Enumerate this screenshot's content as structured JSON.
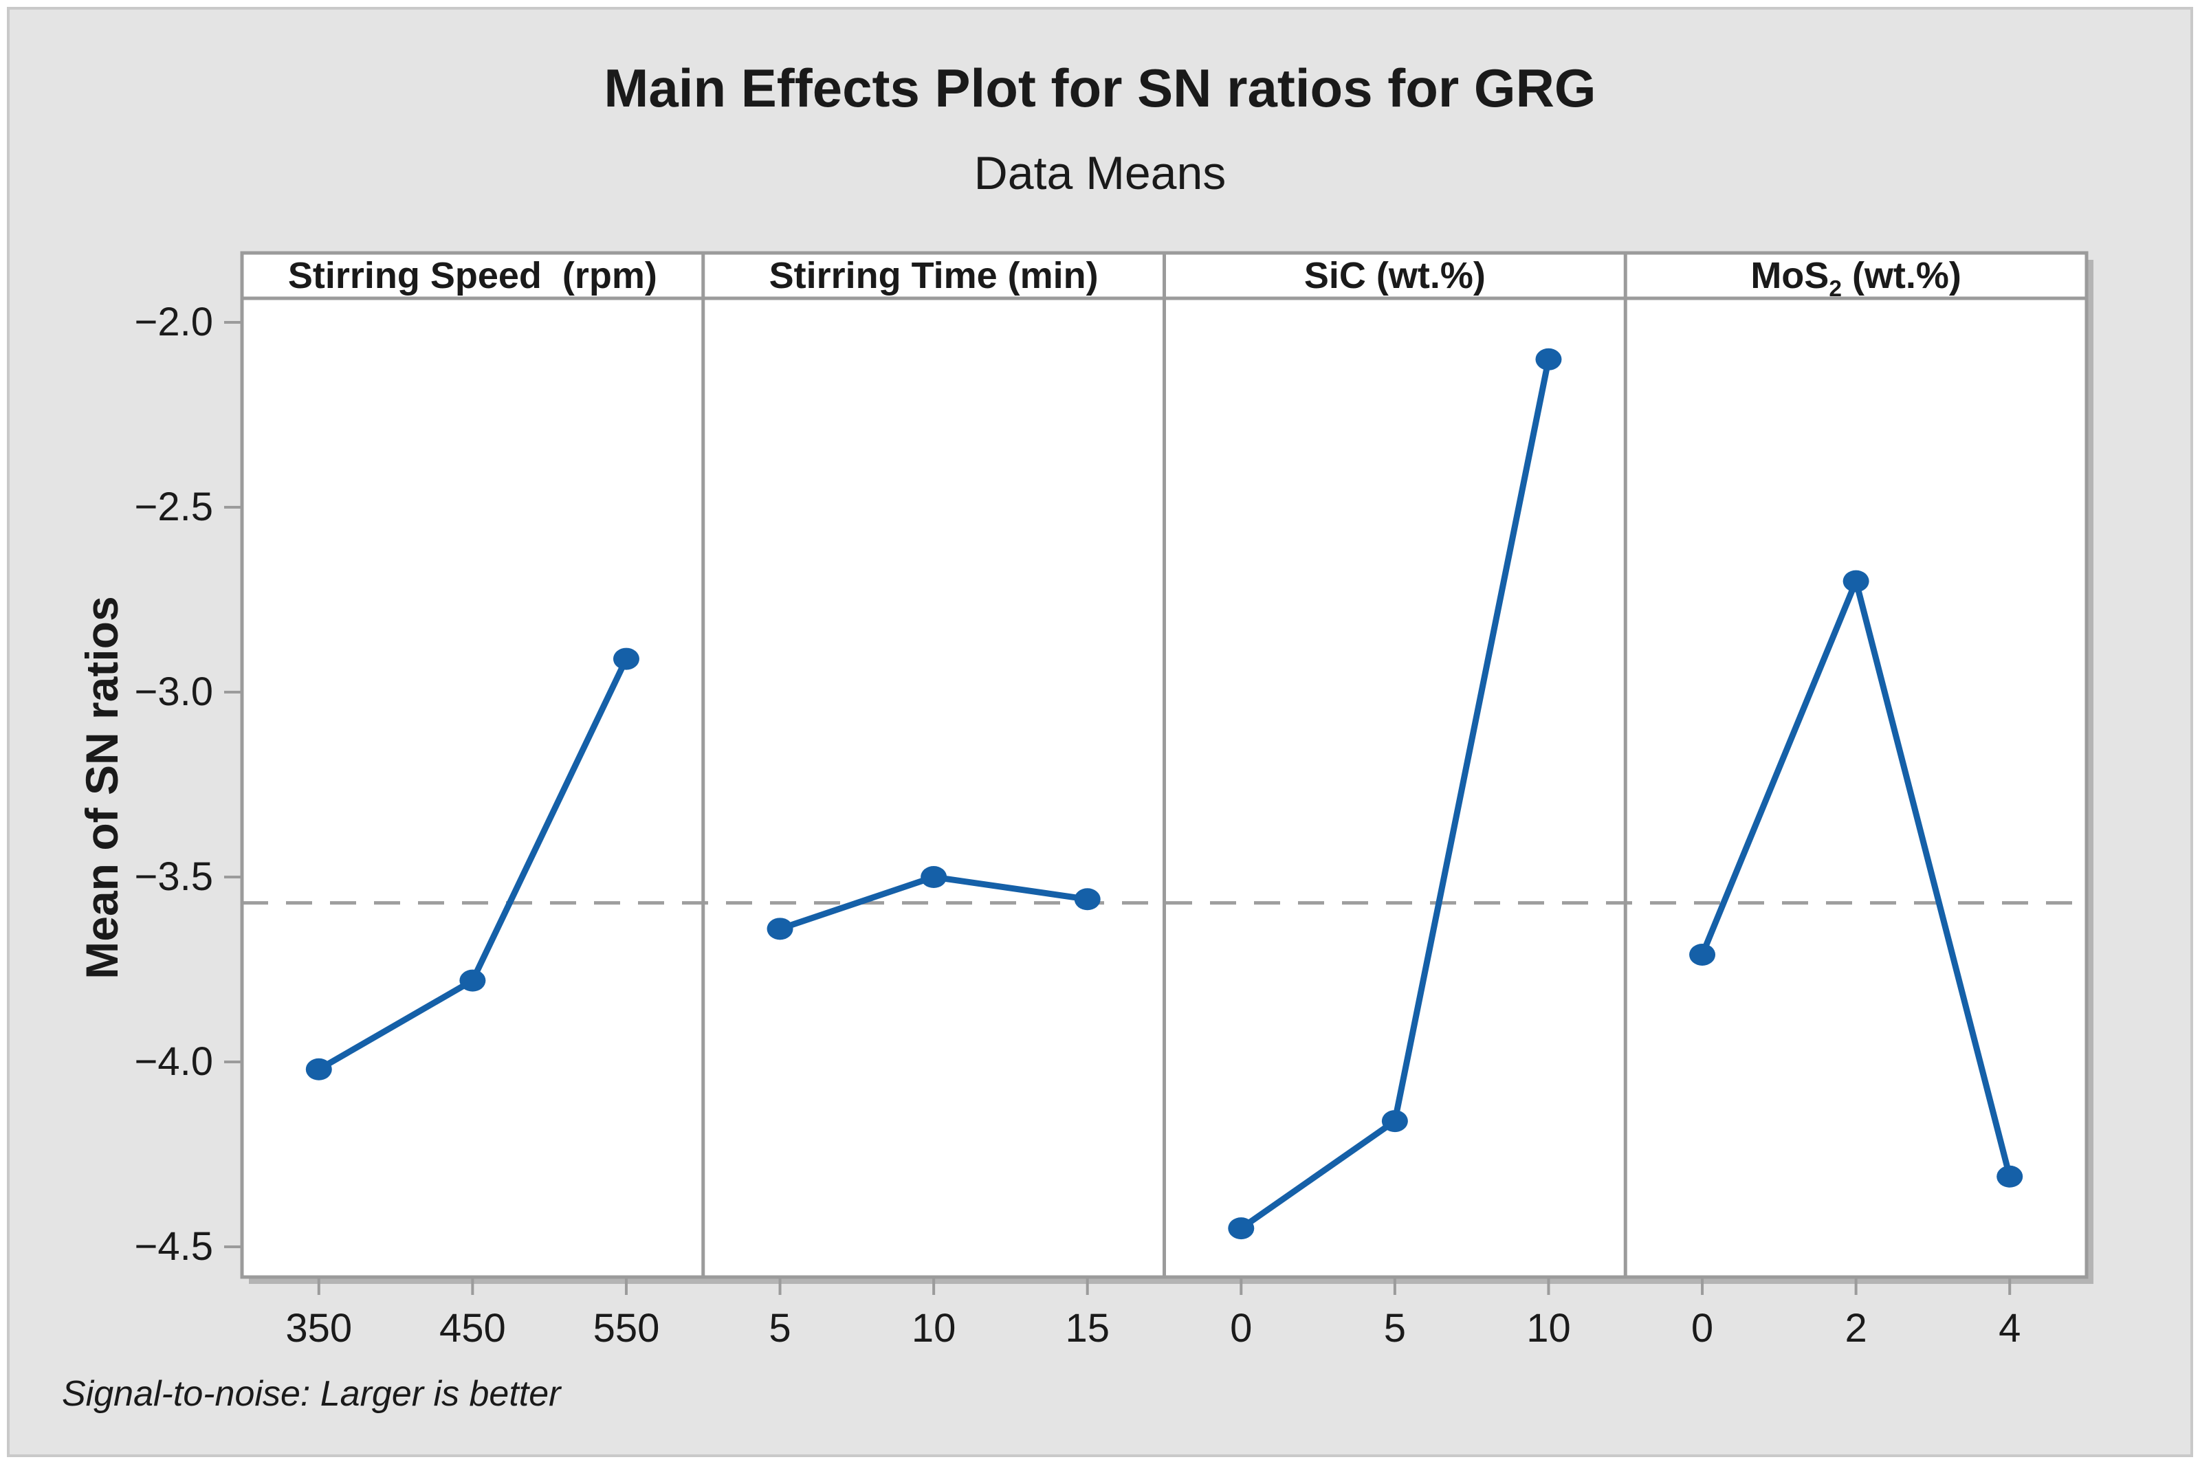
{
  "window_title": "Main Effects Plot for SN ratios for GRG",
  "title": "Main Effects Plot for SN ratios for GRG",
  "subtitle": "Data Means",
  "ylabel": "Mean of SN ratios",
  "footer": "Signal-to-noise: Larger is better",
  "colors": {
    "series_line": "#1560a8",
    "marker_fill": "#1560a8",
    "reference_line": "#9e9e9e",
    "panel_border": "#9b9b9b",
    "frame_shadow": "#b4b4b4",
    "plot_background": "#ffffff",
    "page_background": "#e4e4e4",
    "text": "#1a1a1a"
  },
  "chart_data": {
    "type": "line",
    "title": "Main Effects Plot for SN ratios for GRG",
    "subtitle": "Data Means",
    "ylabel": "Mean of SN ratios",
    "footnote": "Signal-to-noise: Larger is better",
    "grid": false,
    "legend": "none",
    "ylim": [
      -4.58,
      -1.93
    ],
    "yticks": [
      -2.0,
      -2.5,
      -3.0,
      -3.5,
      -4.0,
      -4.5
    ],
    "ytick_labels": [
      "-2.0",
      "-2.5",
      "-3.0",
      "-3.5",
      "-4.0",
      "-4.5"
    ],
    "reference_line": -3.57,
    "reference_line_style": "dashed",
    "panels": [
      {
        "label": "Stirring Speed  (rpm)",
        "categories": [
          "350",
          "450",
          "550"
        ],
        "values": [
          -4.02,
          -3.78,
          -2.91
        ]
      },
      {
        "label": "Stirring Time (min)",
        "categories": [
          "5",
          "10",
          "15"
        ],
        "values": [
          -3.64,
          -3.5,
          -3.56
        ]
      },
      {
        "label": "SiC (wt.%)",
        "categories": [
          "0",
          "5",
          "10"
        ],
        "values": [
          -4.45,
          -4.16,
          -2.1
        ]
      },
      {
        "label": "MoS_{2} (wt.%)",
        "categories": [
          "0",
          "2",
          "4"
        ],
        "values": [
          -3.71,
          -2.7,
          -4.31
        ]
      }
    ]
  }
}
